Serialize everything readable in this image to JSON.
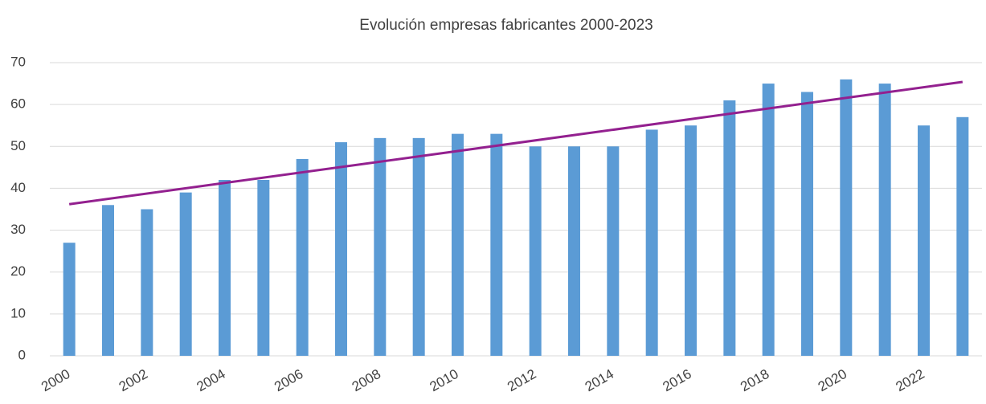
{
  "chart_data": {
    "type": "bar",
    "title": "Evolución empresas fabricantes 2000-2023",
    "categories": [
      "2000",
      null,
      "2002",
      null,
      "2004",
      null,
      "2006",
      null,
      "2008",
      null,
      "2010",
      null,
      "2012",
      null,
      "2014",
      null,
      "2016",
      null,
      "2018",
      null,
      "2020",
      null,
      "2022",
      null
    ],
    "values": [
      27,
      36,
      35,
      39,
      42,
      42,
      47,
      51,
      52,
      52,
      53,
      53,
      50,
      50,
      50,
      54,
      55,
      61,
      65,
      63,
      66,
      65,
      55,
      57
    ],
    "color": "#5b9bd5",
    "trend": {
      "color": "#93208f",
      "values": [
        36.2,
        65.4
      ]
    },
    "ylim": [
      0,
      70
    ],
    "yticks": [
      0,
      10,
      20,
      30,
      40,
      50,
      60,
      70
    ],
    "grid": true
  }
}
